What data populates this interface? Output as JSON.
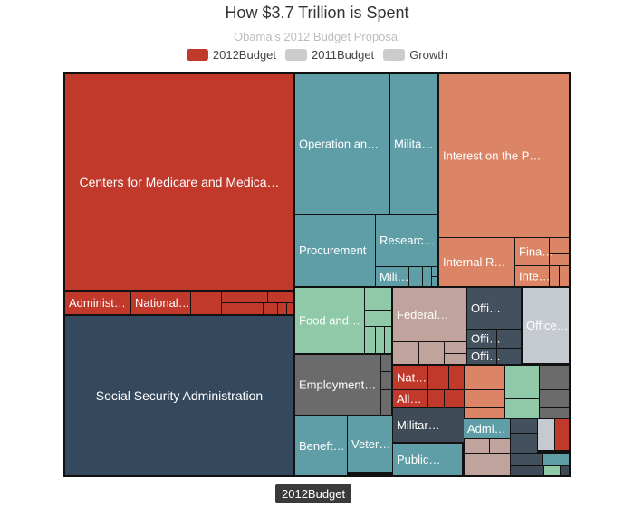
{
  "title": "How $3.7 Trillion is Spent",
  "subtitle": "Obama’s 2012 Budget Proposal",
  "legend": [
    {
      "label": "2012Budget",
      "color": "#c0392b"
    },
    {
      "label": "2011Budget",
      "color": "#cccccc"
    },
    {
      "label": "Growth",
      "color": "#cccccc"
    }
  ],
  "tooltip": "2012Budget",
  "chart_data": {
    "type": "treemap",
    "title": "How $3.7 Trillion is Spent",
    "subtitle": "Obama’s 2012 Budget Proposal",
    "size_metric": "2012Budget",
    "colors": {
      "hhs": "#c0392b",
      "ssa": "#34495e",
      "defense": "#5f9ea6",
      "treasury": "#dc8466",
      "agriculture": "#8fc9a8",
      "transportation": "#bfa39c",
      "office_dark": "#43505e",
      "office_light": "#c5cad1",
      "labor": "#6b6b6b",
      "small_red": "#c0392b",
      "small_dark": "#3e4a56",
      "small_teal": "#5f9ea6"
    },
    "cells": [
      {
        "label": "Centers for Medicare and Medica…",
        "group": "hhs"
      },
      {
        "label": "Administ…",
        "group": "hhs"
      },
      {
        "label": "National…",
        "group": "hhs"
      },
      {
        "label": "Social Security Administration",
        "group": "ssa"
      },
      {
        "label": "Operation an…",
        "group": "defense"
      },
      {
        "label": "Milita…",
        "group": "defense"
      },
      {
        "label": "Procurement",
        "group": "defense"
      },
      {
        "label": "Researc…",
        "group": "defense"
      },
      {
        "label": "Mili…",
        "group": "defense"
      },
      {
        "label": "Interest on the P…",
        "group": "treasury"
      },
      {
        "label": "Internal R…",
        "group": "treasury"
      },
      {
        "label": "Fina…",
        "group": "treasury"
      },
      {
        "label": "Inte…",
        "group": "treasury"
      },
      {
        "label": "Food and…",
        "group": "agriculture"
      },
      {
        "label": "Federal…",
        "group": "transportation"
      },
      {
        "label": "Offi…",
        "group": "office_dark"
      },
      {
        "label": "Offi…",
        "group": "office_dark"
      },
      {
        "label": "Offi…",
        "group": "office_dark"
      },
      {
        "label": "Office…",
        "group": "office_light"
      },
      {
        "label": "Employment…",
        "group": "labor"
      },
      {
        "label": "Nat…",
        "group": "small_red"
      },
      {
        "label": "All…",
        "group": "small_red"
      },
      {
        "label": "Militar…",
        "group": "small_dark"
      },
      {
        "label": "Public…",
        "group": "small_teal"
      },
      {
        "label": "Beneft…",
        "group": "small_teal"
      },
      {
        "label": "Veter…",
        "group": "small_teal"
      },
      {
        "label": "Admi…",
        "group": "small_teal"
      }
    ]
  }
}
